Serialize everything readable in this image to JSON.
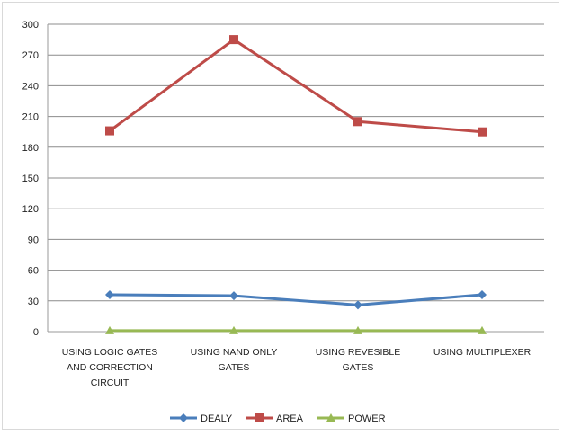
{
  "chart_data": {
    "type": "line",
    "categories": [
      [
        "USING LOGIC GATES",
        "AND CORRECTION",
        "CIRCUIT"
      ],
      [
        "USING NAND ONLY",
        "GATES"
      ],
      [
        "USING REVESIBLE",
        "GATES"
      ],
      [
        "USING MULTIPLEXER"
      ]
    ],
    "ylim": [
      0,
      300
    ],
    "yticks": [
      0,
      30,
      60,
      90,
      120,
      150,
      180,
      210,
      240,
      270,
      300
    ],
    "grid": true,
    "legend_position": "bottom",
    "series": [
      {
        "name": "DEALY",
        "color": "#4a7ebb",
        "marker": "diamond",
        "values": [
          36,
          35,
          26,
          36
        ]
      },
      {
        "name": "AREA",
        "color": "#be4b48",
        "marker": "square",
        "values": [
          196,
          285,
          205,
          195
        ]
      },
      {
        "name": "POWER",
        "color": "#98b954",
        "marker": "triangle",
        "values": [
          1,
          1,
          1,
          1
        ]
      }
    ]
  }
}
